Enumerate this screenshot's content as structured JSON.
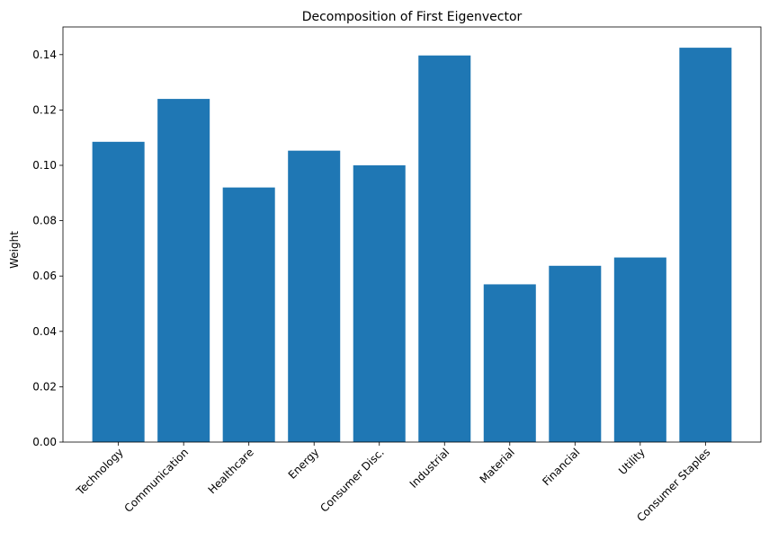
{
  "chart_data": {
    "type": "bar",
    "title": "Decomposition of First Eigenvector",
    "xlabel": "",
    "ylabel": "Weight",
    "categories": [
      "Technology",
      "Communication",
      "Healthcare",
      "Energy",
      "Consumer Disc.",
      "Industrial",
      "Material",
      "Financial",
      "Utility",
      "Consumer Staples"
    ],
    "values": [
      0.1085,
      0.124,
      0.092,
      0.1053,
      0.1,
      0.1397,
      0.057,
      0.0637,
      0.0667,
      0.1425
    ],
    "ylim": [
      0,
      0.15
    ],
    "yticks": [
      "0.00",
      "0.02",
      "0.04",
      "0.06",
      "0.08",
      "0.10",
      "0.12",
      "0.14"
    ],
    "bar_color": "#1f77b4",
    "grid": false,
    "legend": "none"
  }
}
